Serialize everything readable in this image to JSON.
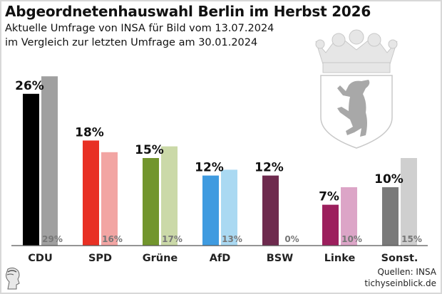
{
  "header": {
    "title": "Abgeordnetenhauswahl Berlin im Herbst 2026",
    "subtitle_line1": "Aktuelle Umfrage von INSA für Bild vom 13.07.2024",
    "subtitle_line2": "im Vergleich zur letzten Umfrage am 30.01.2024"
  },
  "footer": {
    "source": "Quellen: INSA",
    "site": "tichyseinblick.de"
  },
  "chart_data": {
    "type": "bar",
    "title": "Abgeordnetenhauswahl Berlin im Herbst 2026",
    "xlabel": "",
    "ylabel": "",
    "ylim": [
      0,
      30
    ],
    "grid": false,
    "categories": [
      "CDU",
      "SPD",
      "Grüne",
      "AfD",
      "BSW",
      "Linke",
      "Sonst."
    ],
    "series": [
      {
        "name": "Umfrage 13.07.2024",
        "values": [
          26,
          18,
          15,
          12,
          12,
          7,
          10
        ],
        "labels": [
          "26%",
          "18%",
          "15%",
          "12%",
          "12%",
          "7%",
          "10%"
        ],
        "colors": [
          "#000000",
          "#e83024",
          "#72952d",
          "#3f9be0",
          "#6e2a4e",
          "#9c1f5d",
          "#7a7a7a"
        ]
      },
      {
        "name": "Umfrage 30.01.2024",
        "values": [
          29,
          16,
          17,
          13,
          0,
          10,
          15
        ],
        "labels": [
          "29%",
          "16%",
          "17%",
          "13%",
          "0%",
          "10%",
          "15%"
        ],
        "colors": [
          "#a0a0a0",
          "#f2a5a3",
          "#cbd9a8",
          "#aad9f2",
          "#c9b3bf",
          "#dca5c7",
          "#cfcfcf"
        ]
      }
    ]
  }
}
